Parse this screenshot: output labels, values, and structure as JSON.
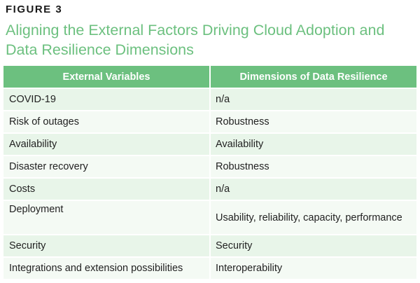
{
  "figure_label": "FIGURE 3",
  "title": "Aligning the External Factors Driving Cloud Adoption and Data Resilience Dimensions",
  "table": {
    "headers": [
      "External Variables",
      "Dimensions of Data Resilience"
    ],
    "rows": [
      [
        "COVID-19",
        "n/a"
      ],
      [
        "Risk of outages",
        "Robustness"
      ],
      [
        "Availability",
        "Availability"
      ],
      [
        "Disaster recovery",
        "Robustness"
      ],
      [
        "Costs",
        "n/a"
      ],
      [
        "Deployment",
        "Usability, reliability, capacity, performance"
      ],
      [
        "Security",
        "Security"
      ],
      [
        "Integrations and extension possibilities",
        "Interoperability"
      ]
    ]
  },
  "colors": {
    "accent": "#6cc07f",
    "row_odd": "#e8f5e9",
    "row_even": "#f4faf4"
  }
}
